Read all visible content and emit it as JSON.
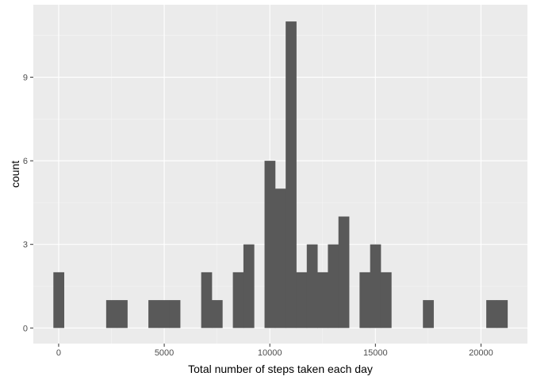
{
  "chart_data": {
    "type": "bar",
    "xlabel": "Total number of steps taken each day",
    "ylabel": "count",
    "grid": true,
    "legend": "none",
    "xlim": [
      -1200,
      22200
    ],
    "ylim": [
      -0.56,
      11.6
    ],
    "x_ticks": [
      0,
      5000,
      10000,
      15000,
      20000
    ],
    "x_tick_labels": [
      "0",
      "5000",
      "10000",
      "15000",
      "20000"
    ],
    "y_ticks": [
      0,
      3,
      6,
      9
    ],
    "y_tick_labels": [
      "0",
      "3",
      "6",
      "9"
    ],
    "bin_width": 500,
    "bins": [
      {
        "x": 0,
        "count": 2
      },
      {
        "x": 2500,
        "count": 1
      },
      {
        "x": 3000,
        "count": 1
      },
      {
        "x": 4500,
        "count": 1
      },
      {
        "x": 5000,
        "count": 1
      },
      {
        "x": 5500,
        "count": 1
      },
      {
        "x": 7000,
        "count": 2
      },
      {
        "x": 7500,
        "count": 1
      },
      {
        "x": 8500,
        "count": 2
      },
      {
        "x": 9000,
        "count": 3
      },
      {
        "x": 10000,
        "count": 6
      },
      {
        "x": 10500,
        "count": 5
      },
      {
        "x": 11000,
        "count": 11
      },
      {
        "x": 11500,
        "count": 2
      },
      {
        "x": 12000,
        "count": 3
      },
      {
        "x": 12500,
        "count": 2
      },
      {
        "x": 13000,
        "count": 3
      },
      {
        "x": 13500,
        "count": 4
      },
      {
        "x": 14500,
        "count": 2
      },
      {
        "x": 15000,
        "count": 3
      },
      {
        "x": 15500,
        "count": 2
      },
      {
        "x": 17500,
        "count": 1
      },
      {
        "x": 20500,
        "count": 1
      },
      {
        "x": 21000,
        "count": 1
      }
    ],
    "colors": {
      "bar": "#595959",
      "panel": "#ebebeb",
      "grid_major": "#ffffff",
      "grid_minor": "#f5f5f5",
      "tick_text": "#4d4d4d",
      "axis_title": "#000000"
    }
  }
}
